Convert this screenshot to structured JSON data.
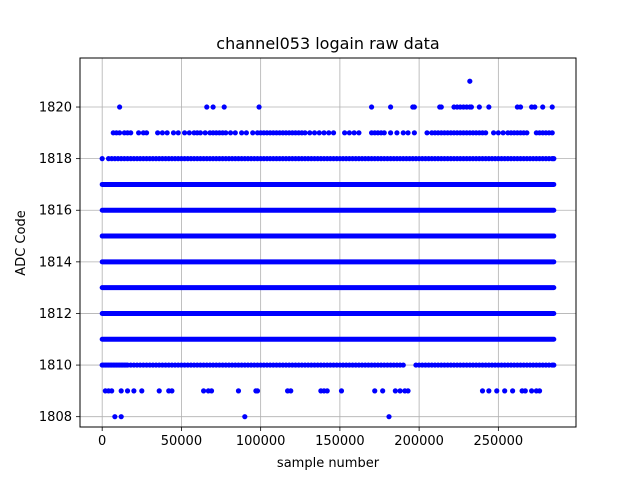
{
  "chart_data": {
    "type": "scatter",
    "title": "channel053 logain raw data",
    "xlabel": "sample number",
    "ylabel": "ADC Code",
    "xlim": [
      -14000,
      299000
    ],
    "ylim": [
      1807.6,
      1821.9
    ],
    "xticks": [
      0,
      50000,
      100000,
      150000,
      200000,
      250000
    ],
    "xtick_labels": [
      "0",
      "50000",
      "100000",
      "150000",
      "200000",
      "250000"
    ],
    "yticks": [
      1808,
      1810,
      1812,
      1814,
      1816,
      1818,
      1820
    ],
    "ytick_labels": [
      "1808",
      "1810",
      "1812",
      "1814",
      "1816",
      "1818",
      "1820"
    ],
    "grid": true,
    "marker_color": "#0000ff",
    "dense_rows": [
      {
        "y": 1811,
        "x_range": [
          0,
          285000
        ]
      },
      {
        "y": 1812,
        "x_range": [
          0,
          285000
        ]
      },
      {
        "y": 1813,
        "x_range": [
          0,
          285000
        ]
      },
      {
        "y": 1814,
        "x_range": [
          0,
          285000
        ]
      },
      {
        "y": 1815,
        "x_range": [
          0,
          285000
        ]
      },
      {
        "y": 1816,
        "x_range": [
          0,
          285000
        ]
      },
      {
        "y": 1817,
        "x_range": [
          0,
          285000
        ]
      }
    ],
    "rows": [
      {
        "y": 1810,
        "x": [
          0,
          1000,
          2000,
          3000,
          4000,
          5000,
          6000,
          7000,
          8000,
          9000,
          10000,
          11000,
          12000,
          13000,
          14000,
          15000,
          16000,
          18000,
          20000,
          22000,
          24000,
          26000,
          28000,
          30000,
          32000,
          34000,
          36000,
          38000,
          40000,
          42000,
          44000,
          46000,
          48000,
          50000,
          52000,
          54000,
          56000,
          58000,
          60000,
          62000,
          64000,
          66000,
          68000,
          70000,
          72000,
          74000,
          76000,
          78000,
          80000,
          82000,
          84000,
          86000,
          88000,
          90000,
          92000,
          94000,
          96000,
          98000,
          100000,
          102000,
          104000,
          106000,
          108000,
          110000,
          112000,
          114000,
          116000,
          118000,
          120000,
          122000,
          124000,
          126000,
          128000,
          130000,
          132000,
          134000,
          136000,
          138000,
          140000,
          142000,
          144000,
          146000,
          148000,
          150000,
          152000,
          154000,
          156000,
          158000,
          160000,
          162000,
          164000,
          166000,
          168000,
          170000,
          172000,
          174000,
          176000,
          178000,
          180000,
          182000,
          184000,
          186000,
          188000,
          190000,
          198000,
          200000,
          202000,
          204000,
          206000,
          208000,
          210000,
          212000,
          214000,
          216000,
          218000,
          220000,
          222000,
          224000,
          226000,
          228000,
          230000,
          232000,
          234000,
          236000,
          238000,
          240000,
          242000,
          244000,
          246000,
          248000,
          250000,
          252000,
          254000,
          256000,
          258000,
          260000,
          262000,
          264000,
          266000,
          268000,
          270000,
          272000,
          274000,
          276000,
          278000,
          280000,
          282000,
          284000,
          285000
        ]
      },
      {
        "y": 1818,
        "x": [
          0,
          4000,
          6000,
          8000,
          10000,
          12000,
          14000,
          16000,
          18000,
          20000,
          22000,
          24000,
          26000,
          28000,
          30000,
          32000,
          34000,
          36000,
          38000,
          40000,
          42000,
          44000,
          46000,
          48000,
          50000,
          52000,
          54000,
          56000,
          58000,
          60000,
          62000,
          64000,
          66000,
          68000,
          70000,
          72000,
          74000,
          76000,
          78000,
          80000,
          82000,
          84000,
          86000,
          88000,
          90000,
          92000,
          94000,
          96000,
          98000,
          100000,
          102000,
          104000,
          106000,
          108000,
          110000,
          112000,
          114000,
          116000,
          118000,
          120000,
          122000,
          124000,
          126000,
          128000,
          130000,
          132000,
          134000,
          136000,
          138000,
          140000,
          142000,
          144000,
          146000,
          148000,
          150000,
          152000,
          154000,
          156000,
          158000,
          160000,
          162000,
          164000,
          166000,
          168000,
          170000,
          172000,
          174000,
          176000,
          178000,
          180000,
          182000,
          184000,
          186000,
          188000,
          190000,
          192000,
          194000,
          196000,
          198000,
          200000,
          202000,
          204000,
          206000,
          208000,
          210000,
          212000,
          214000,
          216000,
          218000,
          220000,
          222000,
          224000,
          226000,
          228000,
          230000,
          232000,
          234000,
          236000,
          238000,
          240000,
          242000,
          244000,
          246000,
          248000,
          250000,
          252000,
          254000,
          256000,
          258000,
          260000,
          262000,
          264000,
          266000,
          268000,
          270000,
          272000,
          274000,
          276000,
          278000,
          280000,
          282000,
          284000,
          285000
        ]
      },
      {
        "y": 1819,
        "x": [
          7000,
          9000,
          11000,
          14000,
          16000,
          18000,
          23000,
          26000,
          28000,
          35000,
          38000,
          41000,
          45000,
          48000,
          52000,
          55000,
          58000,
          60000,
          62000,
          65000,
          68000,
          70000,
          72000,
          74000,
          76000,
          78000,
          81000,
          84000,
          88000,
          91000,
          95000,
          98000,
          100000,
          102000,
          104000,
          106000,
          108000,
          110000,
          112000,
          114000,
          116000,
          118000,
          120000,
          122000,
          124000,
          126000,
          128000,
          131000,
          134000,
          137000,
          140000,
          143000,
          146000,
          153000,
          156000,
          159000,
          162000,
          170000,
          172000,
          174000,
          176000,
          178000,
          182000,
          186000,
          190000,
          193000,
          197000,
          205000,
          208000,
          210000,
          212000,
          214000,
          216000,
          218000,
          220000,
          222000,
          224000,
          226000,
          228000,
          230000,
          232000,
          234000,
          236000,
          238000,
          240000,
          242000,
          247000,
          250000,
          253000,
          256000,
          258000,
          260000,
          262000,
          264000,
          266000,
          268000,
          274000,
          276000,
          278000,
          280000,
          282000,
          284000
        ]
      },
      {
        "y": 1809,
        "x": [
          2000,
          4000,
          6000,
          12000,
          16000,
          20000,
          25000,
          36000,
          42000,
          44000,
          64000,
          67000,
          69000,
          86000,
          97000,
          98000,
          117000,
          119000,
          138000,
          140000,
          142000,
          151000,
          172000,
          177000,
          185000,
          188000,
          191000,
          193000,
          240000,
          244000,
          249000,
          254000,
          259000,
          265000,
          267000,
          271000,
          274000,
          276000
        ]
      },
      {
        "y": 1820,
        "x": [
          11000,
          66000,
          70000,
          77000,
          99000,
          170000,
          182000,
          196000,
          197000,
          213000,
          214000,
          222000,
          224000,
          226000,
          228000,
          230000,
          232000,
          233000,
          238000,
          244000,
          262000,
          264000,
          271000,
          273000,
          278000,
          284000
        ]
      },
      {
        "y": 1808,
        "x": [
          8000,
          12000,
          90000,
          181000
        ]
      },
      {
        "y": 1821,
        "x": [
          232000
        ]
      }
    ]
  }
}
